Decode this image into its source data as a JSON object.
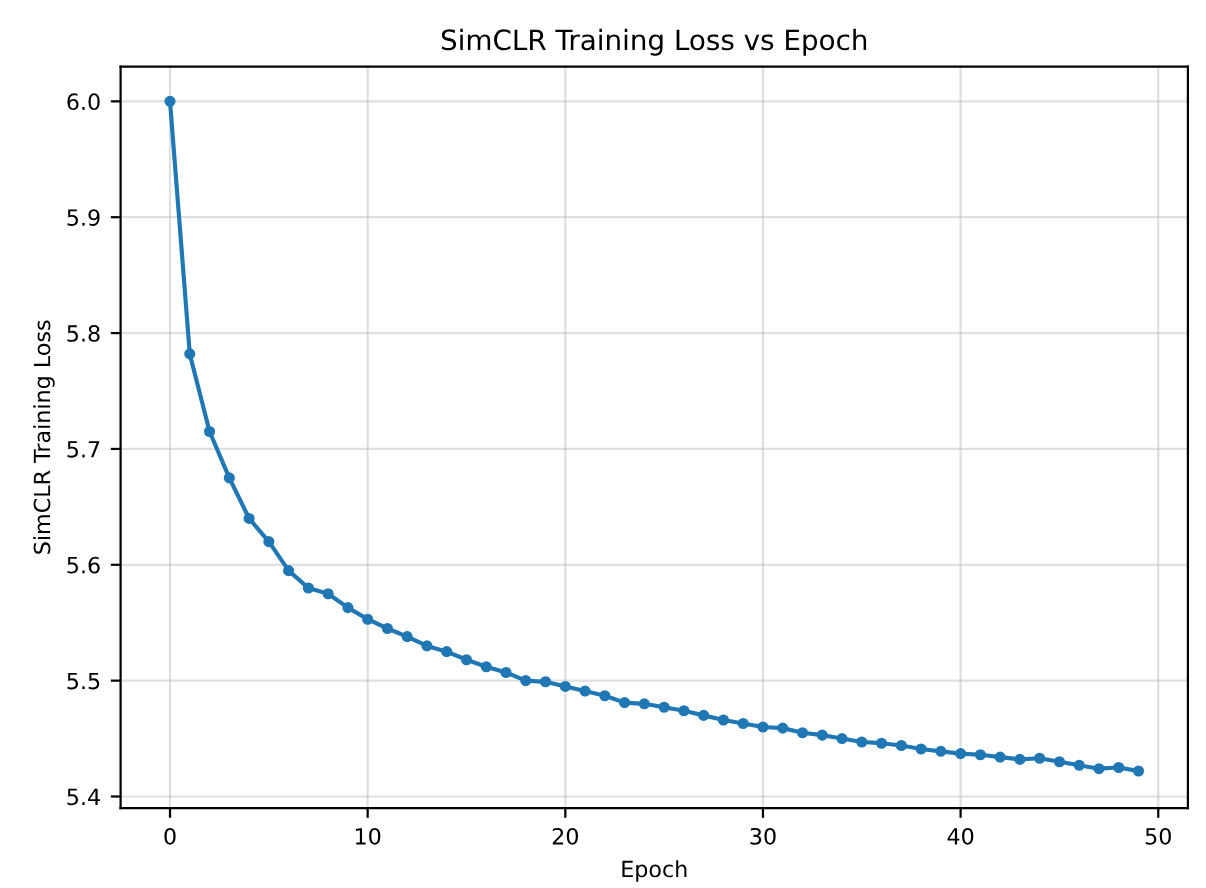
{
  "chart_data": {
    "type": "line",
    "title": "SimCLR Training Loss vs Epoch",
    "xlabel": "Epoch",
    "ylabel": "SimCLR Training Loss",
    "x": [
      0,
      1,
      2,
      3,
      4,
      5,
      6,
      7,
      8,
      9,
      10,
      11,
      12,
      13,
      14,
      15,
      16,
      17,
      18,
      19,
      20,
      21,
      22,
      23,
      24,
      25,
      26,
      27,
      28,
      29,
      30,
      31,
      32,
      33,
      34,
      35,
      36,
      37,
      38,
      39,
      40,
      41,
      42,
      43,
      44,
      45,
      46,
      47,
      48,
      49
    ],
    "series": [
      {
        "color": "#1f77b4",
        "values": [
          6.0,
          5.782,
          5.715,
          5.675,
          5.64,
          5.62,
          5.595,
          5.58,
          5.575,
          5.563,
          5.553,
          5.545,
          5.538,
          5.53,
          5.525,
          5.518,
          5.512,
          5.507,
          5.5,
          5.499,
          5.495,
          5.491,
          5.487,
          5.481,
          5.48,
          5.477,
          5.474,
          5.47,
          5.466,
          5.463,
          5.46,
          5.459,
          5.455,
          5.453,
          5.45,
          5.447,
          5.446,
          5.444,
          5.441,
          5.439,
          5.437,
          5.436,
          5.434,
          5.432,
          5.433,
          5.43,
          5.427,
          5.424,
          5.425,
          5.422
        ]
      }
    ],
    "xlim": [
      -2.5,
      51.5
    ],
    "ylim": [
      5.39,
      6.03
    ],
    "xticks": [
      0,
      10,
      20,
      30,
      40,
      50
    ],
    "yticks": [
      5.4,
      5.5,
      5.6,
      5.7,
      5.8,
      5.9,
      {
        "value": 6,
        "label": "6.0"
      }
    ],
    "grid": true,
    "marker": "circle",
    "line_style": "solid",
    "legend": false
  }
}
